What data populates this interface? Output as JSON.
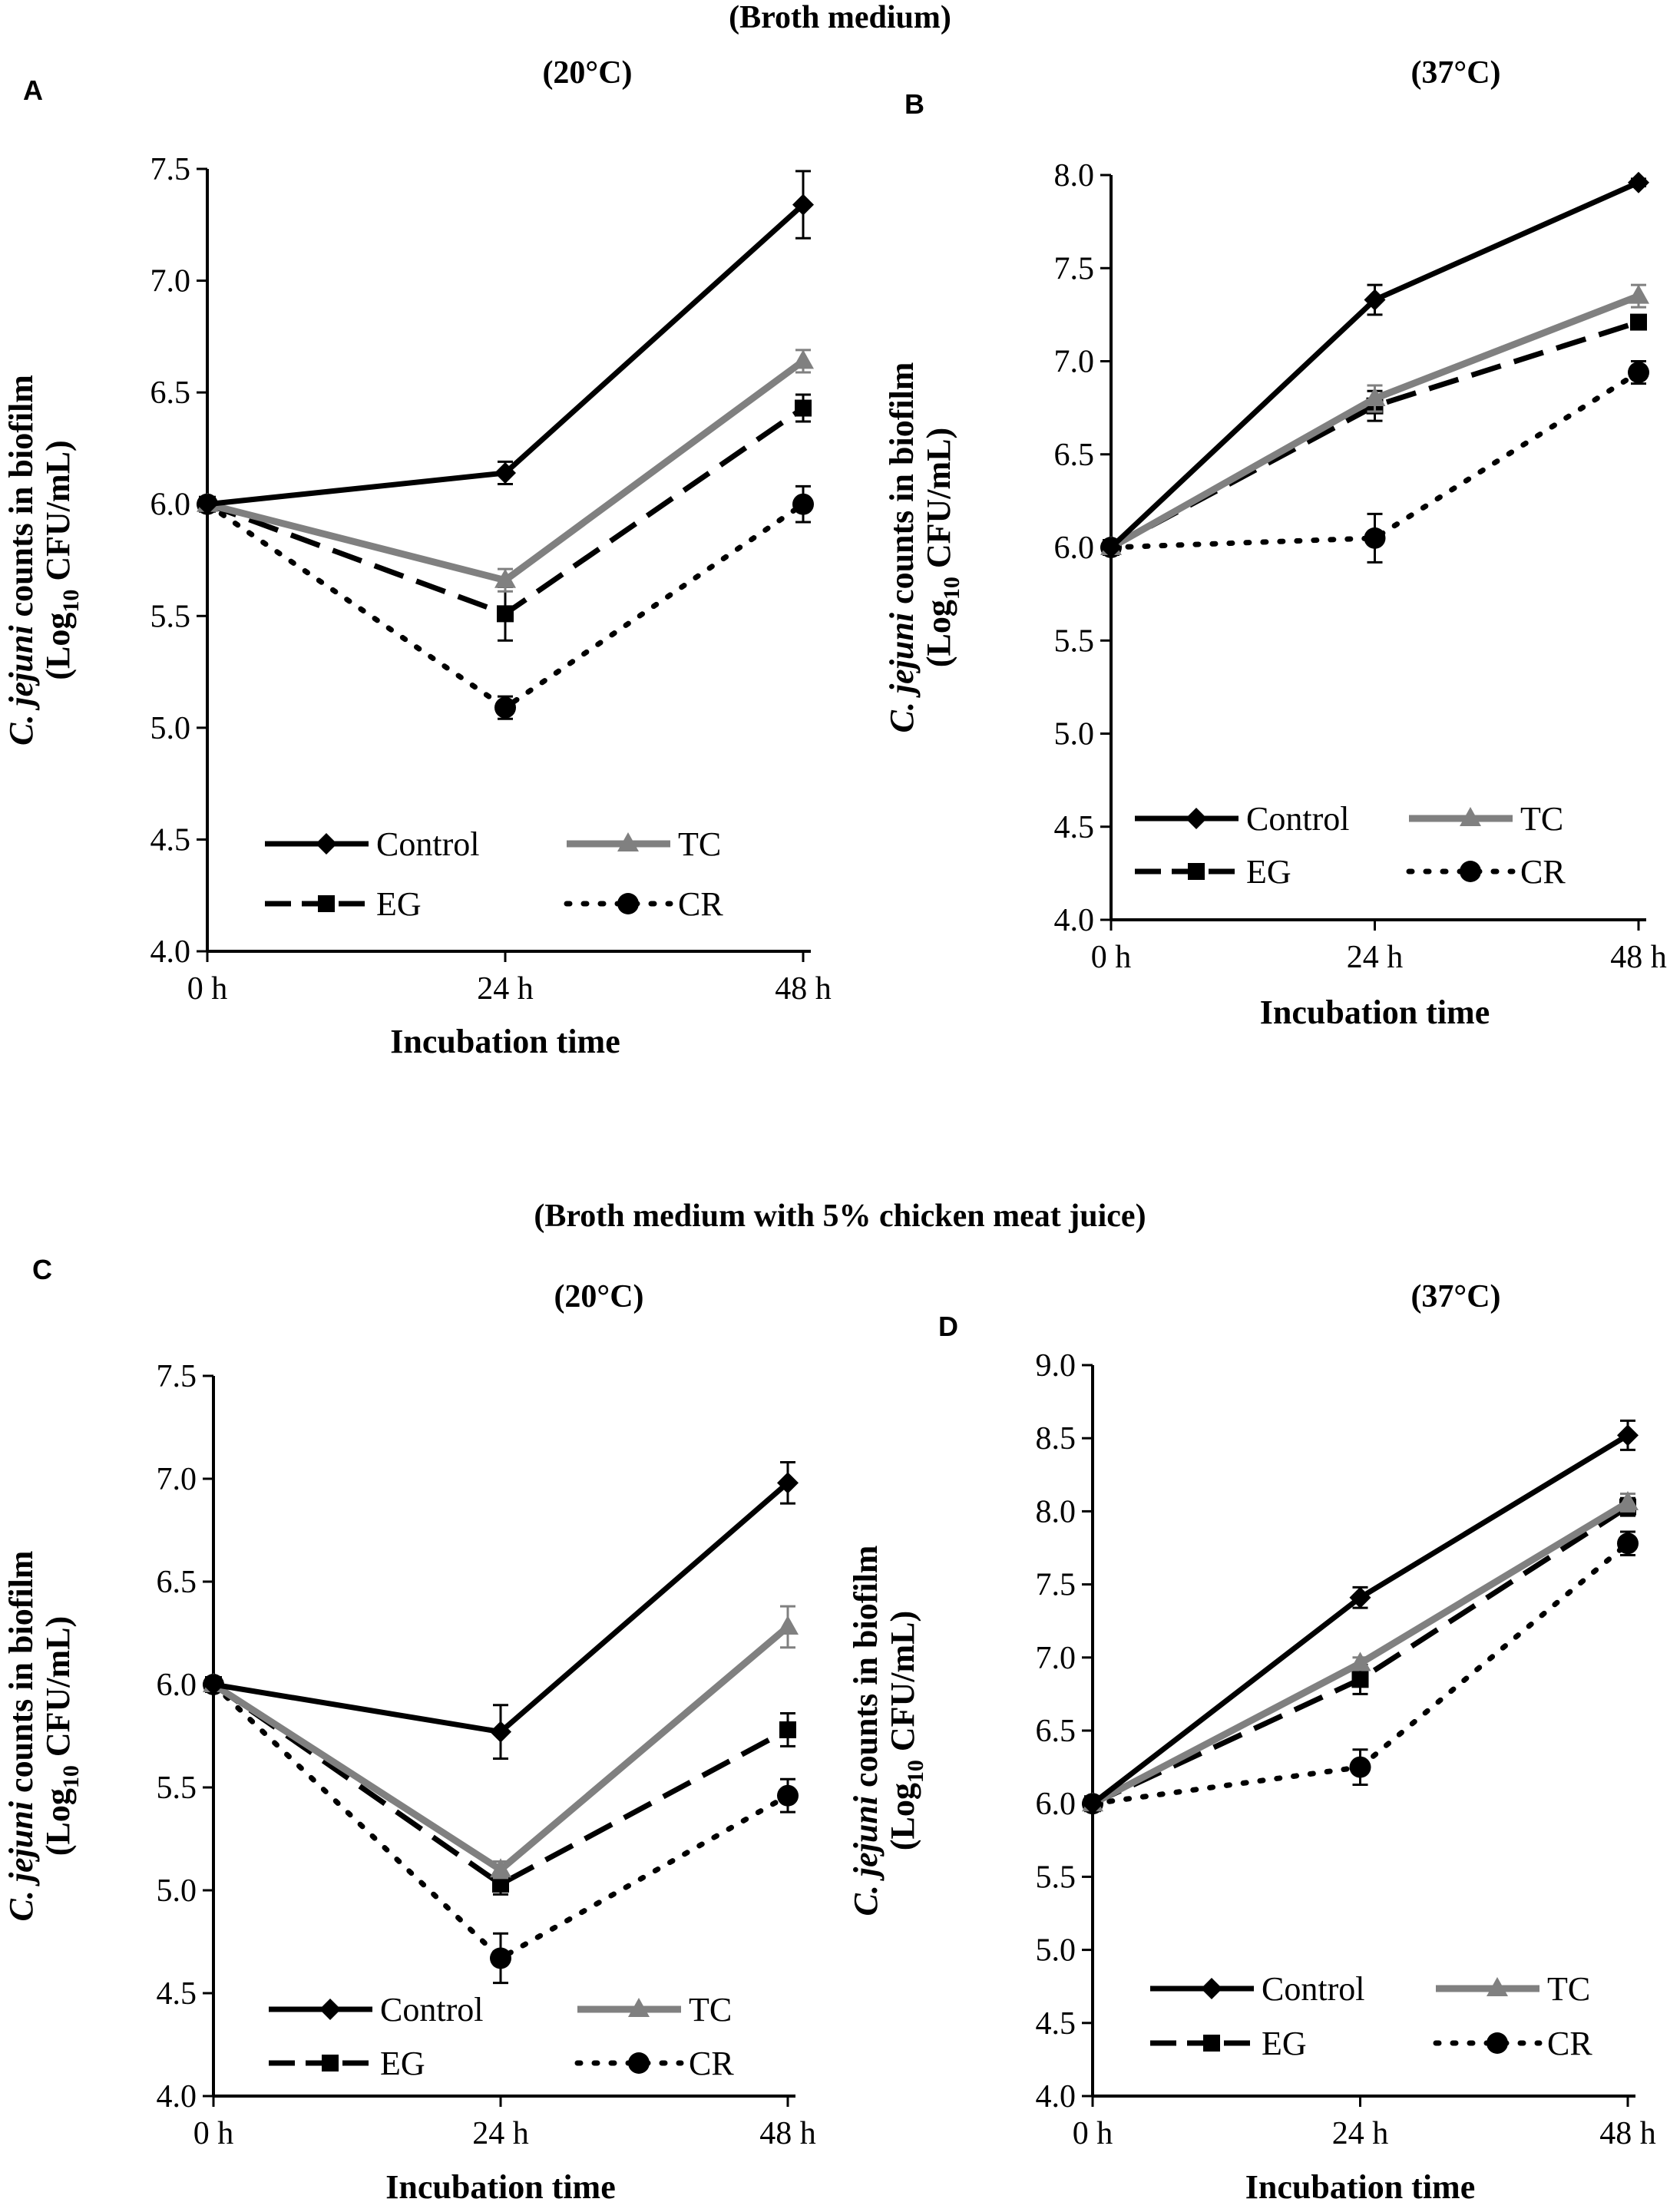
{
  "section_titles": {
    "top": "(Broth medium)",
    "bottom": "(Broth medium with 5% chicken meat juice)"
  },
  "colors": {
    "Control": "#000000",
    "TC": "#808080",
    "EG": "#000000",
    "CR": "#000000"
  },
  "chart_data": [
    {
      "panel": "A",
      "subtitle": "(20°C)",
      "type": "line",
      "categories": [
        "0 h",
        "24 h",
        "48 h"
      ],
      "xlabel": "Incubation time",
      "ylabel": {
        "species": "C. jejuni",
        "rest": " counts in biofilm",
        "unit_pre": "(Log",
        "unit_sub": "10",
        "unit_post": " CFU/mL)"
      },
      "ylim": [
        4.0,
        7.5
      ],
      "yticks": [
        "4.0",
        "4.5",
        "5.0",
        "5.5",
        "6.0",
        "6.5",
        "7.0",
        "7.5"
      ],
      "legend_placement": "bottom-center",
      "series": [
        {
          "name": "Control",
          "values": [
            6.0,
            6.14,
            7.34
          ],
          "errors": [
            0,
            0.05,
            0.15
          ]
        },
        {
          "name": "TC",
          "values": [
            6.0,
            5.66,
            6.64
          ],
          "errors": [
            0,
            0.05,
            0.05
          ]
        },
        {
          "name": "EG",
          "values": [
            6.0,
            5.51,
            6.43
          ],
          "errors": [
            0,
            0.12,
            0.06
          ]
        },
        {
          "name": "CR",
          "values": [
            6.0,
            5.09,
            6.0
          ],
          "errors": [
            0,
            0.05,
            0.08
          ]
        }
      ]
    },
    {
      "panel": "B",
      "subtitle": "(37°C)",
      "type": "line",
      "categories": [
        "0 h",
        "24 h",
        "48 h"
      ],
      "xlabel": "Incubation time",
      "ylabel": {
        "species": "C. jejuni",
        "rest": " counts in biofilm",
        "unit_pre": "(Log",
        "unit_sub": "10",
        "unit_post": " CFU/mL)"
      },
      "ylim": [
        4.0,
        8.0
      ],
      "yticks": [
        "4.0",
        "4.5",
        "5.0",
        "5.5",
        "6.0",
        "6.5",
        "7.0",
        "7.5",
        "8.0"
      ],
      "legend_placement": "bottom-center",
      "series": [
        {
          "name": "Control",
          "values": [
            6.0,
            7.33,
            7.96
          ],
          "errors": [
            0,
            0.08,
            0.02
          ]
        },
        {
          "name": "TC",
          "values": [
            6.0,
            6.8,
            7.35
          ],
          "errors": [
            0,
            0.07,
            0.06
          ]
        },
        {
          "name": "EG",
          "values": [
            6.0,
            6.76,
            7.21
          ],
          "errors": [
            0,
            0.08,
            0.03
          ]
        },
        {
          "name": "CR",
          "values": [
            6.0,
            6.05,
            6.94
          ],
          "errors": [
            0,
            0.13,
            0.06
          ]
        }
      ]
    },
    {
      "panel": "C",
      "subtitle": "(20°C)",
      "type": "line",
      "categories": [
        "0 h",
        "24 h",
        "48 h"
      ],
      "xlabel": "Incubation time",
      "ylabel": {
        "species": "C. jejuni",
        "rest": " counts in biofilm",
        "unit_pre": "(Log",
        "unit_sub": "10",
        "unit_post": " CFU/mL)"
      },
      "ylim": [
        4.0,
        7.5
      ],
      "yticks": [
        "4.0",
        "4.5",
        "5.0",
        "5.5",
        "6.0",
        "6.5",
        "7.0",
        "7.5"
      ],
      "legend_placement": "bottom-center",
      "series": [
        {
          "name": "Control",
          "values": [
            6.0,
            5.77,
            6.98
          ],
          "errors": [
            0,
            0.13,
            0.1
          ]
        },
        {
          "name": "TC",
          "values": [
            6.0,
            5.1,
            6.28
          ],
          "errors": [
            0,
            0.04,
            0.1
          ]
        },
        {
          "name": "EG",
          "values": [
            6.0,
            5.03,
            5.78
          ],
          "errors": [
            0,
            0.05,
            0.08
          ]
        },
        {
          "name": "CR",
          "values": [
            6.0,
            4.67,
            5.46
          ],
          "errors": [
            0,
            0.12,
            0.08
          ]
        }
      ]
    },
    {
      "panel": "D",
      "subtitle": "(37°C)",
      "type": "line",
      "categories": [
        "0 h",
        "24 h",
        "48 h"
      ],
      "xlabel": "Incubation time",
      "ylabel": {
        "species": "C. jejuni",
        "rest": " counts in biofilm",
        "unit_pre": "(Log",
        "unit_sub": "10",
        "unit_post": " CFU/mL)"
      },
      "ylim": [
        4.0,
        9.0
      ],
      "yticks": [
        "4.0",
        "4.5",
        "5.0",
        "5.5",
        "6.0",
        "6.5",
        "7.0",
        "7.5",
        "8.0",
        "8.5",
        "9.0"
      ],
      "legend_placement": "bottom-center",
      "series": [
        {
          "name": "Control",
          "values": [
            6.0,
            7.41,
            8.52
          ],
          "errors": [
            0,
            0.07,
            0.1
          ]
        },
        {
          "name": "TC",
          "values": [
            6.0,
            6.96,
            8.06
          ],
          "errors": [
            0,
            0.04,
            0.06
          ]
        },
        {
          "name": "EG",
          "values": [
            6.0,
            6.85,
            8.03
          ],
          "errors": [
            0,
            0.1,
            0.06
          ]
        },
        {
          "name": "CR",
          "values": [
            6.0,
            6.25,
            7.78
          ],
          "errors": [
            0,
            0.12,
            0.08
          ]
        }
      ]
    }
  ]
}
